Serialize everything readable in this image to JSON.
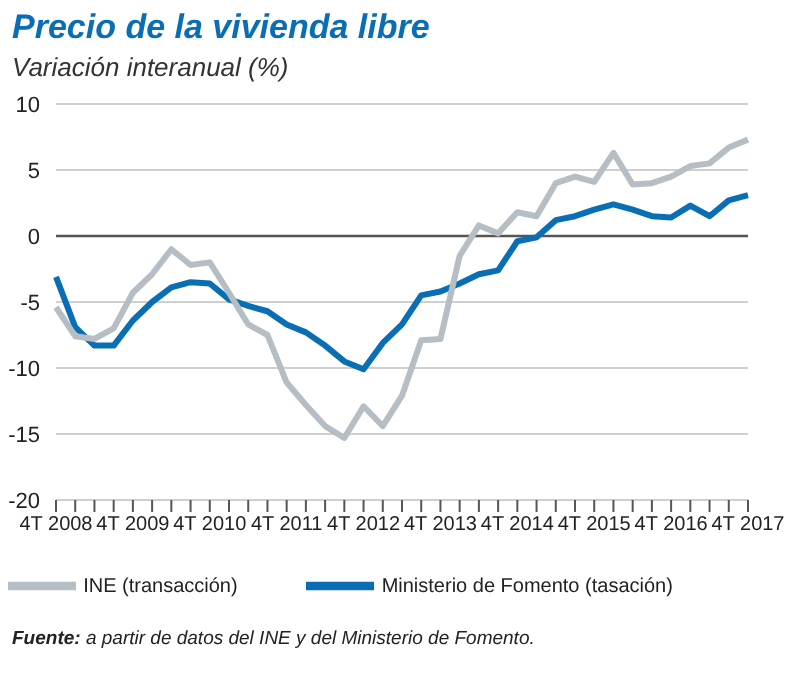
{
  "chart_data": {
    "type": "line",
    "title": "Precio de la vivienda libre",
    "subtitle": "Variación interanual (%)",
    "categories": [
      "4T 2008",
      null,
      null,
      null,
      "4T 2009",
      null,
      null,
      null,
      "4T 2010",
      null,
      null,
      null,
      "4T 2011",
      null,
      null,
      null,
      "4T 2012",
      null,
      null,
      null,
      "4T 2013",
      null,
      null,
      null,
      "4T 2014",
      null,
      null,
      null,
      "4T 2015",
      null,
      null,
      null,
      "4T 2016",
      null,
      null,
      null,
      "4T 2017"
    ],
    "series": [
      {
        "name": "Ministerio de Fomento (tasación)",
        "color": "#0a6eb4",
        "values": [
          -3.1,
          -6.9,
          -8.3,
          -8.3,
          -6.4,
          -5.0,
          -3.9,
          -3.5,
          -3.6,
          -4.8,
          -5.3,
          -5.7,
          -6.7,
          -7.3,
          -8.3,
          -9.5,
          -10.1,
          -8.1,
          -6.7,
          -4.5,
          -4.2,
          -3.6,
          -2.9,
          -2.6,
          -0.4,
          -0.1,
          1.2,
          1.5,
          2.0,
          2.4,
          2.0,
          1.5,
          1.4,
          2.3,
          1.5,
          2.7,
          3.1
        ]
      },
      {
        "name": "INE (transacción)",
        "color": "#b4bec4",
        "values": [
          -5.4,
          -7.6,
          -7.8,
          -7.0,
          -4.3,
          -2.9,
          -1.0,
          -2.2,
          -2.0,
          -4.3,
          -6.7,
          -7.5,
          -11.1,
          -12.8,
          -14.4,
          -15.3,
          -12.9,
          -14.4,
          -12.1,
          -7.9,
          -7.8,
          -1.5,
          0.8,
          0.2,
          1.8,
          1.5,
          4.0,
          4.5,
          4.1,
          6.3,
          3.9,
          4.0,
          4.5,
          5.3,
          5.5,
          6.7,
          7.3
        ]
      }
    ],
    "ylim": [
      -20,
      10
    ],
    "yticks": [
      -20,
      -15,
      -10,
      -5,
      0,
      5,
      10
    ],
    "grid": "y",
    "legend": "bottom",
    "marker": "none",
    "line_style": "solid",
    "ref_lines": [
      {
        "axis": "y",
        "value": 0,
        "color": "#555555"
      }
    ],
    "annotations": [
      "Fuente: a partir de datos del INE y del Ministerio de Fomento."
    ]
  }
}
